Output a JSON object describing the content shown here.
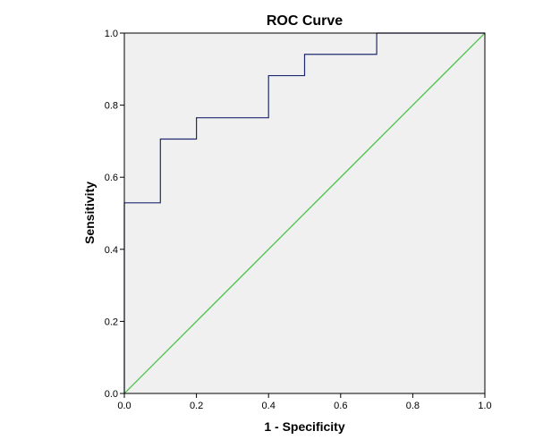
{
  "chart_data": {
    "type": "line",
    "title": "ROC Curve",
    "xlabel": "1 - Specificity",
    "ylabel": "Sensitivity",
    "xlim": [
      0,
      1
    ],
    "ylim": [
      0,
      1
    ],
    "x_ticks": [
      "0.0",
      "0.2",
      "0.4",
      "0.6",
      "0.8",
      "1.0"
    ],
    "y_ticks": [
      "0.0",
      "0.2",
      "0.4",
      "0.6",
      "0.8",
      "1.0"
    ],
    "grid": false,
    "legend": "none",
    "plot_background": "#f0f0f0",
    "series": [
      {
        "color": "#1f2a6e",
        "points": [
          [
            0.0,
            0.0
          ],
          [
            0.0,
            0.529
          ],
          [
            0.1,
            0.529
          ],
          [
            0.1,
            0.706
          ],
          [
            0.2,
            0.706
          ],
          [
            0.2,
            0.765
          ],
          [
            0.4,
            0.765
          ],
          [
            0.4,
            0.882
          ],
          [
            0.5,
            0.882
          ],
          [
            0.5,
            0.941
          ],
          [
            0.7,
            0.941
          ],
          [
            0.7,
            1.0
          ],
          [
            1.0,
            1.0
          ]
        ]
      },
      {
        "color": "#3cbf3c",
        "points": [
          [
            0.0,
            0.0
          ],
          [
            1.0,
            1.0
          ]
        ]
      }
    ]
  }
}
